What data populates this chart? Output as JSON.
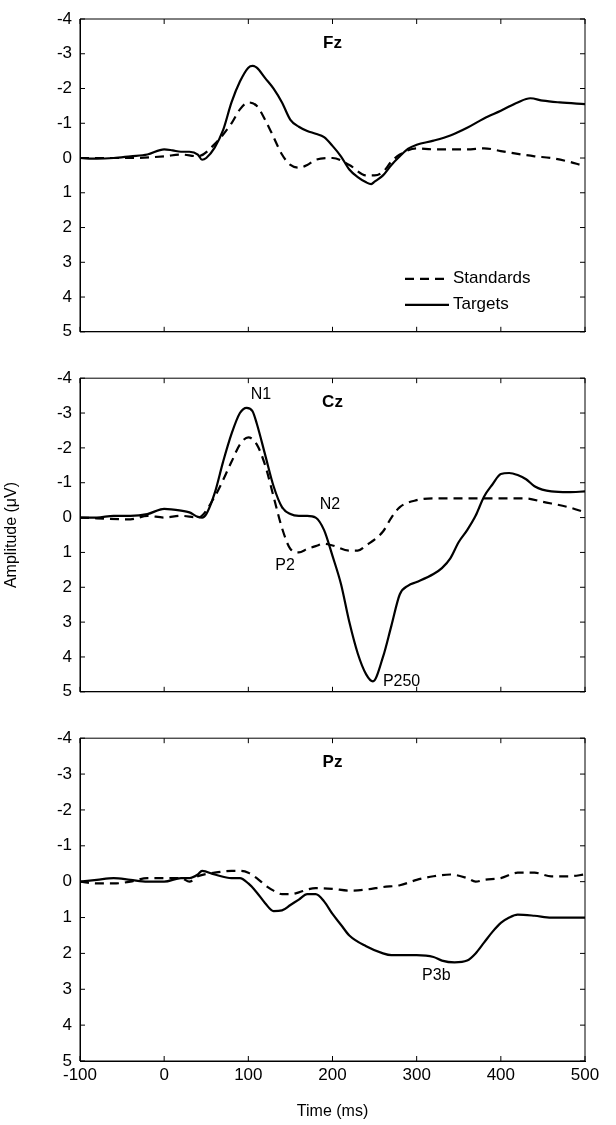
{
  "chart_data": [
    {
      "type": "line",
      "title": "Fz",
      "xlim": [
        -100,
        500
      ],
      "xticks": [
        -100,
        0,
        100,
        200,
        300,
        400,
        500
      ],
      "ylim": [
        5,
        -4
      ],
      "yticks": [
        -4,
        -3,
        -2,
        -1,
        0,
        1,
        2,
        3,
        4,
        5
      ],
      "tick_labels": "y",
      "legend": "bottom right",
      "series": [
        {
          "name": "Standards",
          "color": "#000000",
          "line_style": "dashed",
          "x": [
            -100,
            -40,
            0,
            20,
            40,
            60,
            80,
            90,
            100,
            110,
            120,
            130,
            140,
            150,
            160,
            170,
            180,
            200,
            220,
            240,
            250,
            260,
            270,
            280,
            300,
            320,
            340,
            360,
            380,
            400,
            420,
            440,
            460,
            480,
            495
          ],
          "values": [
            0,
            0,
            -0.05,
            -0.1,
            -0.05,
            -0.4,
            -1.0,
            -1.4,
            -1.6,
            -1.5,
            -1.1,
            -0.6,
            -0.1,
            0.2,
            0.28,
            0.2,
            0.05,
            0,
            0.2,
            0.5,
            0.5,
            0.4,
            0.1,
            -0.1,
            -0.28,
            -0.25,
            -0.25,
            -0.25,
            -0.28,
            -0.2,
            -0.12,
            -0.05,
            0,
            0.1,
            0.2
          ]
        },
        {
          "name": "Targets",
          "color": "#000000",
          "line_style": "solid",
          "x": [
            -100,
            -80,
            -60,
            -40,
            -20,
            0,
            10,
            20,
            30,
            40,
            45,
            50,
            60,
            70,
            80,
            90,
            100,
            105,
            110,
            120,
            130,
            140,
            150,
            160,
            170,
            180,
            190,
            200,
            210,
            220,
            230,
            240,
            246,
            250,
            260,
            270,
            280,
            290,
            300,
            320,
            340,
            360,
            380,
            400,
            420,
            435,
            450,
            470,
            500
          ],
          "values": [
            0,
            0.02,
            0,
            -0.05,
            -0.1,
            -0.25,
            -0.22,
            -0.18,
            -0.18,
            -0.1,
            0.05,
            0,
            -0.3,
            -0.8,
            -1.6,
            -2.2,
            -2.6,
            -2.65,
            -2.6,
            -2.3,
            -2.0,
            -1.6,
            -1.1,
            -0.9,
            -0.78,
            -0.7,
            -0.6,
            -0.35,
            -0.05,
            0.33,
            0.55,
            0.7,
            0.75,
            0.68,
            0.5,
            0.2,
            -0.05,
            -0.27,
            -0.38,
            -0.5,
            -0.65,
            -0.87,
            -1.14,
            -1.36,
            -1.6,
            -1.72,
            -1.65,
            -1.6,
            -1.55
          ]
        }
      ]
    },
    {
      "type": "line",
      "title": "Cz",
      "ylabel": "Amplitude (μV)",
      "xlim": [
        -100,
        500
      ],
      "xticks": [
        -100,
        0,
        100,
        200,
        300,
        400,
        500
      ],
      "ylim": [
        5,
        -4
      ],
      "yticks": [
        -4,
        -3,
        -2,
        -1,
        0,
        1,
        2,
        3,
        4,
        5
      ],
      "tick_labels": "y",
      "annotations": [
        {
          "text": "N1",
          "x": 98,
          "y": -3.15
        },
        {
          "text": "N2",
          "x": 180,
          "y": 0
        },
        {
          "text": "P2",
          "x": 160,
          "y": 1.0
        },
        {
          "text": "P250",
          "x": 248,
          "y": 4.7
        }
      ],
      "series": [
        {
          "color": "#000000",
          "line_style": "dashed",
          "x": [
            -100,
            -40,
            -20,
            0,
            20,
            40,
            60,
            80,
            90,
            100,
            110,
            120,
            130,
            140,
            150,
            160,
            170,
            180,
            190,
            200,
            220,
            230,
            240,
            260,
            270,
            280,
            300,
            320,
            360,
            400,
            430,
            450,
            480,
            500
          ],
          "values": [
            0,
            0.05,
            -0.05,
            0,
            -0.05,
            0,
            -0.6,
            -1.6,
            -2.1,
            -2.3,
            -2.1,
            -1.5,
            -0.6,
            0.3,
            0.9,
            1.0,
            0.9,
            0.82,
            0.75,
            0.8,
            0.95,
            0.95,
            0.8,
            0.4,
            0,
            -0.3,
            -0.5,
            -0.55,
            -0.55,
            -0.55,
            -0.55,
            -0.45,
            -0.3,
            -0.15
          ]
        },
        {
          "color": "#000000",
          "line_style": "solid",
          "x": [
            -100,
            -80,
            -60,
            -40,
            -20,
            0,
            20,
            30,
            40,
            45,
            50,
            60,
            70,
            80,
            90,
            98,
            105,
            110,
            120,
            130,
            140,
            150,
            160,
            170,
            180,
            190,
            200,
            210,
            220,
            230,
            240,
            248,
            260,
            270,
            280,
            290,
            300,
            320,
            330,
            340,
            350,
            360,
            370,
            380,
            390,
            400,
            410,
            420,
            430,
            440,
            460,
            480,
            500
          ],
          "values": [
            0,
            0,
            -0.05,
            -0.05,
            -0.1,
            -0.25,
            -0.2,
            -0.15,
            -0.02,
            0,
            -0.1,
            -0.7,
            -1.6,
            -2.4,
            -3.0,
            -3.15,
            -3.05,
            -2.7,
            -1.8,
            -0.9,
            -0.3,
            -0.1,
            -0.05,
            -0.05,
            0,
            0.36,
            1.1,
            1.9,
            3.0,
            3.9,
            4.5,
            4.7,
            4.0,
            3.1,
            2.2,
            1.95,
            1.85,
            1.62,
            1.45,
            1.17,
            0.7,
            0.36,
            -0.05,
            -0.6,
            -0.95,
            -1.25,
            -1.28,
            -1.22,
            -1.1,
            -0.9,
            -0.75,
            -0.73,
            -0.75
          ]
        }
      ]
    },
    {
      "type": "line",
      "title": "Pz",
      "xlabel": "Time (ms)",
      "xlim": [
        -100,
        500
      ],
      "xticks": [
        -100,
        0,
        100,
        200,
        300,
        400,
        500
      ],
      "ylim": [
        5,
        -4
      ],
      "yticks": [
        -4,
        -3,
        -2,
        -1,
        0,
        1,
        2,
        3,
        4,
        5
      ],
      "annotations": [
        {
          "text": "P3b",
          "x": 345,
          "y": 2.25
        }
      ],
      "series": [
        {
          "color": "#000000",
          "line_style": "dashed",
          "x": [
            -100,
            -80,
            -60,
            -40,
            -20,
            0,
            20,
            30,
            40,
            60,
            80,
            90,
            100,
            110,
            120,
            130,
            140,
            150,
            160,
            170,
            180,
            200,
            220,
            240,
            260,
            280,
            300,
            320,
            340,
            360,
            370,
            380,
            400,
            420,
            440,
            460,
            480,
            500
          ],
          "values": [
            0,
            0.05,
            0.05,
            0,
            -0.1,
            -0.1,
            -0.1,
            0,
            -0.15,
            -0.25,
            -0.3,
            -0.3,
            -0.25,
            -0.1,
            0.1,
            0.25,
            0.35,
            0.35,
            0.3,
            0.22,
            0.18,
            0.2,
            0.25,
            0.22,
            0.15,
            0.1,
            -0.05,
            -0.15,
            -0.2,
            -0.1,
            0,
            -0.05,
            -0.1,
            -0.25,
            -0.25,
            -0.15,
            -0.15,
            -0.2
          ]
        },
        {
          "color": "#000000",
          "line_style": "solid",
          "x": [
            -100,
            -80,
            -60,
            -40,
            -20,
            0,
            20,
            30,
            40,
            45,
            60,
            80,
            90,
            100,
            110,
            120,
            130,
            140,
            150,
            160,
            170,
            180,
            190,
            200,
            210,
            220,
            240,
            260,
            270,
            300,
            320,
            330,
            345,
            360,
            370,
            380,
            390,
            400,
            410,
            420,
            440,
            460,
            500
          ],
          "values": [
            0,
            -0.05,
            -0.1,
            -0.05,
            0,
            0,
            -0.1,
            -0.1,
            -0.2,
            -0.3,
            -0.2,
            -0.1,
            -0.1,
            0.05,
            0.3,
            0.6,
            0.82,
            0.8,
            0.65,
            0.5,
            0.35,
            0.35,
            0.55,
            0.9,
            1.2,
            1.5,
            1.8,
            2.0,
            2.05,
            2.05,
            2.1,
            2.2,
            2.25,
            2.2,
            2.0,
            1.7,
            1.4,
            1.15,
            1.0,
            0.92,
            0.95,
            1.0,
            1.0
          ]
        }
      ]
    }
  ]
}
